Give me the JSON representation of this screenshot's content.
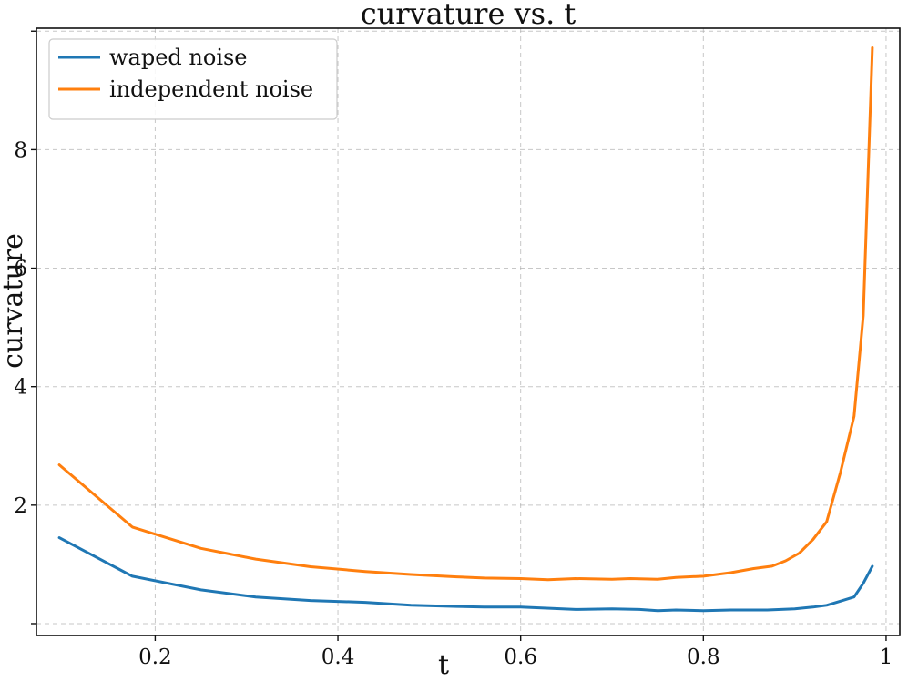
{
  "chart_data": {
    "type": "line",
    "title": "curvature vs. t",
    "xlabel": "t",
    "ylabel": "curvature",
    "xlim": [
      0.07,
      1.015
    ],
    "ylim": [
      -0.2,
      10.05
    ],
    "xticks": [
      0.2,
      0.4,
      0.6,
      0.8,
      1.0
    ],
    "xtick_labels": [
      "0.2",
      "0.4",
      "0.6",
      "0.8",
      "1"
    ],
    "yticks": [
      0,
      2,
      4,
      6,
      8,
      10
    ],
    "ytick_labels": [
      "",
      "2",
      "4",
      "6",
      "8",
      ""
    ],
    "grid": true,
    "legend_position": "top-left",
    "series": [
      {
        "name": "waped noise",
        "color": "#1f77b4",
        "x": [
          0.095,
          0.175,
          0.25,
          0.31,
          0.37,
          0.43,
          0.48,
          0.53,
          0.56,
          0.6,
          0.66,
          0.7,
          0.73,
          0.75,
          0.77,
          0.8,
          0.83,
          0.87,
          0.9,
          0.92,
          0.935,
          0.95,
          0.965,
          0.975,
          0.985
        ],
        "y": [
          1.45,
          0.8,
          0.57,
          0.45,
          0.39,
          0.36,
          0.31,
          0.29,
          0.28,
          0.28,
          0.24,
          0.25,
          0.24,
          0.22,
          0.23,
          0.22,
          0.23,
          0.23,
          0.25,
          0.28,
          0.31,
          0.38,
          0.45,
          0.68,
          0.97
        ]
      },
      {
        "name": "independent noise",
        "color": "#ff7f0e",
        "x": [
          0.095,
          0.175,
          0.25,
          0.31,
          0.37,
          0.43,
          0.48,
          0.53,
          0.56,
          0.6,
          0.63,
          0.66,
          0.7,
          0.72,
          0.75,
          0.77,
          0.8,
          0.83,
          0.855,
          0.875,
          0.89,
          0.905,
          0.92,
          0.935,
          0.95,
          0.965,
          0.975,
          0.985
        ],
        "y": [
          2.68,
          1.63,
          1.27,
          1.09,
          0.96,
          0.88,
          0.83,
          0.79,
          0.77,
          0.76,
          0.74,
          0.76,
          0.75,
          0.76,
          0.75,
          0.78,
          0.8,
          0.86,
          0.93,
          0.97,
          1.06,
          1.19,
          1.42,
          1.72,
          2.55,
          3.5,
          5.2,
          9.72
        ]
      }
    ]
  }
}
